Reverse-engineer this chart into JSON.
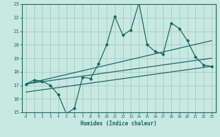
{
  "xlabel": "Humidex (Indice chaleur)",
  "ylabel": "",
  "xlim": [
    -0.5,
    23.5
  ],
  "ylim": [
    15,
    23
  ],
  "yticks": [
    15,
    16,
    17,
    18,
    19,
    20,
    21,
    22,
    23
  ],
  "xticks": [
    0,
    1,
    2,
    3,
    4,
    5,
    6,
    7,
    8,
    9,
    10,
    11,
    12,
    13,
    14,
    15,
    16,
    17,
    18,
    19,
    20,
    21,
    22,
    23
  ],
  "bg_color": "#c8e8e2",
  "grid_color": "#aad0c8",
  "line_color": "#1a6858",
  "main_line_x": [
    0,
    1,
    2,
    3,
    4,
    5,
    6,
    7,
    8,
    9,
    10,
    11,
    12,
    13,
    14,
    15,
    16,
    17,
    18,
    19,
    20,
    21,
    22,
    23
  ],
  "main_line_y": [
    17.1,
    17.4,
    17.3,
    17.0,
    16.3,
    14.9,
    15.3,
    17.6,
    17.5,
    18.6,
    20.0,
    22.1,
    20.7,
    21.1,
    23.1,
    20.0,
    19.5,
    19.3,
    21.6,
    21.2,
    20.3,
    19.1,
    18.5,
    18.4
  ],
  "trend1_x": [
    0,
    23
  ],
  "trend1_y": [
    17.1,
    20.3
  ],
  "trend2_x": [
    0,
    23
  ],
  "trend2_y": [
    17.1,
    19.0
  ],
  "trend3_x": [
    0,
    23
  ],
  "trend3_y": [
    16.5,
    18.4
  ]
}
